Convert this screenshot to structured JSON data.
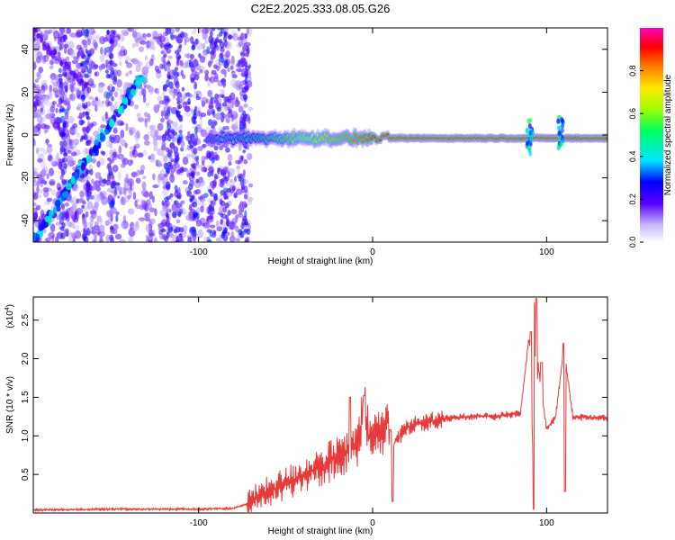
{
  "title": "C2E2.2025.333.08.05.G26",
  "chart_data": [
    {
      "type": "heatmap",
      "title": "C2E2.2025.333.08.05.G26",
      "xlabel": "Height of straight line (km)",
      "ylabel": "Frequency (Hz)",
      "xlim": [
        -195,
        135
      ],
      "ylim": [
        -50,
        50
      ],
      "xticks": [
        -100,
        0,
        100
      ],
      "xtick_labels": [
        "-100",
        "0",
        "100"
      ],
      "yticks": [
        -40,
        -20,
        0,
        20,
        40
      ],
      "ytick_labels": [
        "-40",
        "-20",
        "0",
        "20",
        "40"
      ],
      "colorbar": {
        "label": "Normalized spectral amplitude",
        "range": [
          0,
          1
        ],
        "ticks": [
          0.0,
          0.2,
          0.4,
          0.6,
          0.8
        ],
        "tick_labels": [
          "0.0",
          "0.2",
          "0.4",
          "0.6",
          "0.8"
        ]
      },
      "features": {
        "diagonal_trace": {
          "x_start": -195,
          "y_start": -50,
          "x_end": -132,
          "y_end": 28
        },
        "main_trace": {
          "x_start": -95,
          "x_end": 135,
          "y_center": -1.5
        }
      }
    },
    {
      "type": "line",
      "xlabel": "Height of straight line (km)",
      "ylabel": "SNR (10 * v/v)",
      "scale_label": "(x10",
      "scale_exp": "4",
      "xlim": [
        -195,
        135
      ],
      "ylim": [
        0,
        2.8
      ],
      "xticks": [
        -100,
        0,
        100
      ],
      "xtick_labels": [
        "-100",
        "0",
        "100"
      ],
      "yticks": [
        0.5,
        1.0,
        1.5,
        2.0,
        2.5
      ],
      "ytick_labels": [
        "0.5",
        "1.0",
        "1.5",
        "2.0",
        "2.5"
      ],
      "color": "#e83a3a",
      "series": [
        {
          "name": "SNR",
          "x": [
            -195,
            -150,
            -100,
            -80,
            -72,
            -68,
            -60,
            -50,
            -40,
            -30,
            -20,
            -12,
            -8,
            -5,
            -2,
            0,
            5,
            10,
            12,
            20,
            30,
            40,
            50,
            60,
            70,
            80,
            85,
            90,
            92,
            93,
            94,
            95,
            97,
            100,
            105,
            110,
            115,
            120,
            135
          ],
          "y": [
            0.04,
            0.05,
            0.05,
            0.06,
            0.12,
            0.18,
            0.28,
            0.38,
            0.48,
            0.6,
            0.72,
            0.82,
            0.92,
            1.45,
            0.95,
            1.02,
            1.05,
            1.2,
            0.9,
            1.12,
            1.18,
            1.22,
            1.24,
            1.26,
            1.25,
            1.28,
            1.3,
            2.3,
            0.9,
            2.78,
            0.95,
            1.95,
            1.6,
            1.1,
            1.22,
            2.15,
            1.25,
            1.24,
            1.23
          ]
        }
      ],
      "spikes": [
        {
          "x": -13,
          "y": 1.5
        },
        {
          "x": -5,
          "y": 1.52
        },
        {
          "x": 10,
          "y": 1.08
        },
        {
          "x": 91,
          "y": 2.35
        },
        {
          "x": 94,
          "y": 2.78
        },
        {
          "x": 97,
          "y": 1.95
        },
        {
          "x": 110,
          "y": 2.2
        }
      ]
    }
  ]
}
